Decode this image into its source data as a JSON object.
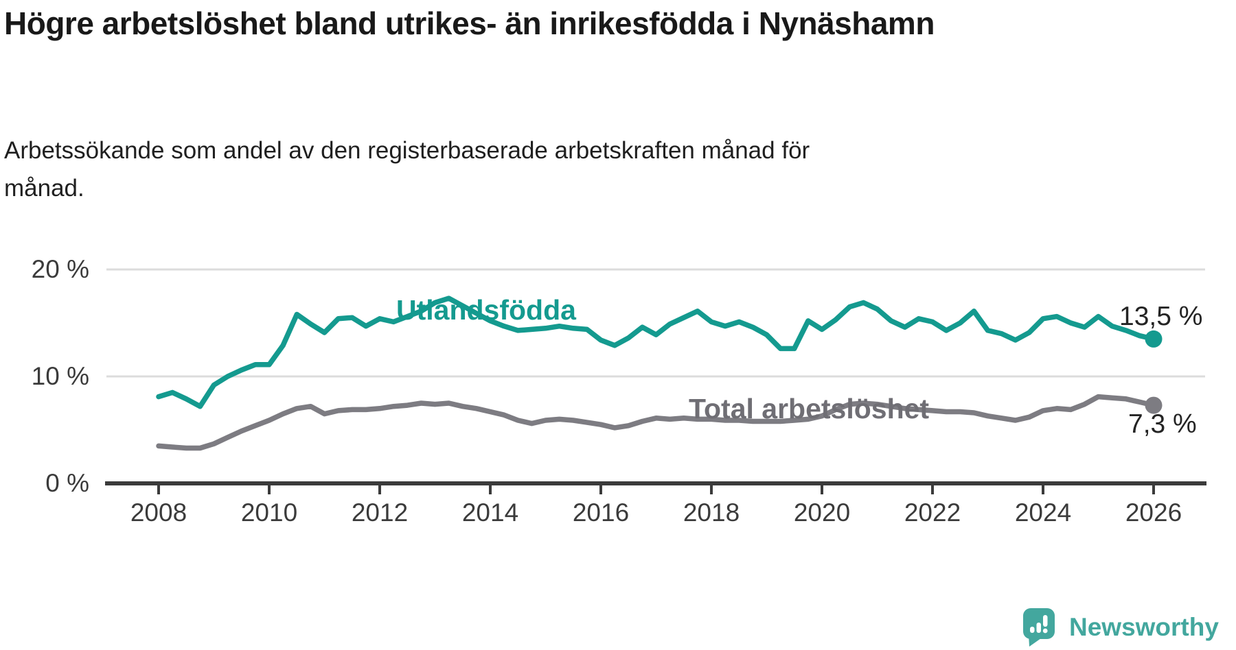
{
  "header": {
    "title_line1": "Högre arbetslöshet bland utrikes- än inrikesfödda i",
    "title_line2": "Nynäshamn",
    "subtitle_line1": "Arbetssökande som andel av den registerbaserade arbetskraften månad för",
    "subtitle_line2": "månad."
  },
  "footer": {
    "logo_text": "Newsworthy",
    "logo_color": "#43a79e"
  },
  "chart_data": {
    "type": "line",
    "title": "Högre arbetslöshet bland utrikes- än inrikesfödda i Nynäshamn",
    "subtitle": "Arbetssökande som andel av den registerbaserade arbetskraften månad för månad.",
    "grid": "horizontal-only",
    "legend_position": "inline-labels-on-lines",
    "x_range": [
      2008,
      2026
    ],
    "ylim": [
      0,
      21.5
    ],
    "x_ticks": [
      "2008",
      "2010",
      "2012",
      "2014",
      "2016",
      "2018",
      "2020",
      "2022",
      "2024",
      "2026"
    ],
    "y_tick_labels": [
      "20 %",
      "10 %",
      "0 %"
    ],
    "y_tick_values": [
      20,
      10,
      0
    ],
    "colors": {
      "utlandsfodda": "#149a8f",
      "total": "#7d7c82",
      "grid": "#dcdcdc",
      "axis": "#3b3b3b"
    },
    "series": [
      {
        "name": "Utlandsfödda",
        "color": "#149a8f",
        "end_label": "13,5 %",
        "end_value": 13.5,
        "x_start": 2008.0,
        "x_step": 0.25,
        "values": [
          8.1,
          8.5,
          7.9,
          7.2,
          9.2,
          10.0,
          10.6,
          11.1,
          11.1,
          12.9,
          15.8,
          14.9,
          14.1,
          15.4,
          15.5,
          14.7,
          15.4,
          15.1,
          15.6,
          16.1,
          16.9,
          17.3,
          16.6,
          15.9,
          15.2,
          14.7,
          14.3,
          14.4,
          14.5,
          14.7,
          14.5,
          14.4,
          13.4,
          12.9,
          13.6,
          14.6,
          13.9,
          14.9,
          15.5,
          16.1,
          15.1,
          14.7,
          15.1,
          14.6,
          13.9,
          12.6,
          12.6,
          15.2,
          14.4,
          15.3,
          16.5,
          16.9,
          16.3,
          15.2,
          14.6,
          15.4,
          15.1,
          14.3,
          15.0,
          16.1,
          14.3,
          14.0,
          13.4,
          14.1,
          15.4,
          15.6,
          15.0,
          14.6,
          15.6,
          14.7,
          14.3,
          13.8,
          13.5
        ]
      },
      {
        "name": "Total arbetslöshet",
        "color": "#7d7c82",
        "end_label": "7,3 %",
        "end_value": 7.3,
        "x_start": 2008.0,
        "x_step": 0.25,
        "values": [
          3.5,
          3.4,
          3.3,
          3.3,
          3.7,
          4.3,
          4.9,
          5.4,
          5.9,
          6.5,
          7.0,
          7.2,
          6.5,
          6.8,
          6.9,
          6.9,
          7.0,
          7.2,
          7.3,
          7.5,
          7.4,
          7.5,
          7.2,
          7.0,
          6.7,
          6.4,
          5.9,
          5.6,
          5.9,
          6.0,
          5.9,
          5.7,
          5.5,
          5.2,
          5.4,
          5.8,
          6.1,
          6.0,
          6.1,
          6.0,
          6.0,
          5.9,
          5.9,
          5.8,
          5.8,
          5.8,
          5.9,
          6.0,
          6.3,
          6.9,
          7.4,
          7.5,
          7.4,
          7.2,
          7.0,
          6.9,
          6.8,
          6.7,
          6.7,
          6.6,
          6.3,
          6.1,
          5.9,
          6.2,
          6.8,
          7.0,
          6.9,
          7.4,
          8.1,
          8.0,
          7.9,
          7.6,
          7.3
        ]
      }
    ]
  }
}
